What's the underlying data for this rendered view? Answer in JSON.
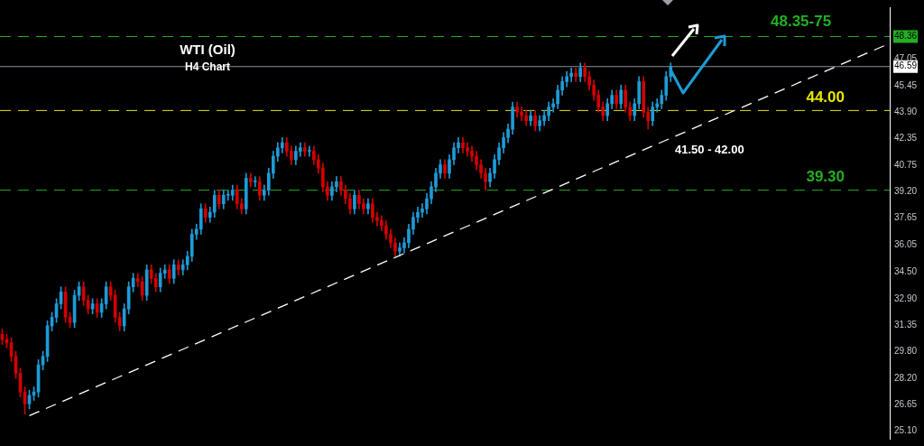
{
  "chart_data": {
    "type": "candlestick",
    "title": "WTI (Oil)",
    "subtitle": "H4 Chart",
    "annotations": [
      "48.35-75",
      "41.50 - 42.00"
    ],
    "categories": [
      null,
      null,
      null,
      null,
      null,
      null,
      null,
      null,
      null,
      null,
      null,
      null,
      null,
      null,
      null,
      null,
      null,
      null,
      null,
      null,
      null,
      null,
      null,
      null,
      null,
      null,
      null,
      null,
      null,
      null,
      null,
      null,
      null,
      null,
      null,
      null,
      null,
      null,
      null,
      null,
      null,
      null,
      null,
      null,
      null,
      null,
      null,
      null,
      null,
      null,
      null,
      null,
      null,
      null,
      null,
      null,
      null,
      null,
      null,
      null,
      null,
      null,
      null,
      null,
      null,
      null,
      null,
      null,
      null,
      null,
      null,
      null,
      null,
      null,
      null,
      null,
      null,
      null,
      null,
      null,
      null,
      null,
      null,
      null,
      null,
      null,
      null,
      null,
      null,
      null,
      null,
      null,
      null,
      null,
      null,
      null,
      null,
      null,
      null,
      null,
      null,
      null,
      null,
      null,
      null,
      null,
      null,
      null,
      null,
      null,
      null,
      null,
      null,
      null,
      null,
      null,
      null,
      null,
      null,
      null,
      null,
      null,
      null,
      null,
      null,
      null,
      null,
      null,
      null,
      null,
      null,
      null,
      null,
      null,
      null,
      null,
      null,
      null,
      null,
      null,
      null,
      null,
      null,
      null,
      null,
      null,
      null,
      null,
      null,
      null,
      null,
      null,
      null,
      null,
      null,
      null,
      null,
      null,
      null,
      null,
      null,
      null,
      null,
      null,
      null,
      null,
      null,
      null,
      null,
      null,
      null,
      null,
      null,
      null,
      null,
      null,
      null,
      null,
      null,
      null,
      null,
      null,
      null,
      null,
      null,
      null,
      null,
      null,
      null,
      null,
      null,
      null,
      null,
      null,
      null,
      null,
      null
    ],
    "ohlc": [
      [
        30.8,
        31.1,
        30.2,
        30.5
      ],
      [
        30.5,
        30.8,
        30.0,
        30.3
      ],
      [
        30.3,
        30.6,
        29.2,
        29.5
      ],
      [
        29.5,
        29.8,
        28.2,
        28.5
      ],
      [
        28.5,
        28.8,
        27.1,
        27.4
      ],
      [
        27.4,
        27.7,
        26.1,
        26.7
      ],
      [
        26.7,
        27.5,
        26.4,
        27.2
      ],
      [
        27.2,
        27.7,
        26.9,
        27.4
      ],
      [
        27.4,
        29.3,
        27.1,
        29.0
      ],
      [
        29.0,
        29.8,
        28.7,
        29.5
      ],
      [
        29.5,
        31.6,
        29.2,
        31.3
      ],
      [
        31.3,
        32.1,
        31.0,
        31.8
      ],
      [
        31.8,
        32.9,
        31.5,
        32.6
      ],
      [
        32.6,
        33.6,
        32.3,
        33.3
      ],
      [
        33.3,
        33.6,
        31.5,
        31.8
      ],
      [
        31.8,
        32.1,
        31.2,
        31.5
      ],
      [
        31.5,
        33.4,
        31.2,
        33.1
      ],
      [
        33.1,
        33.9,
        32.8,
        33.6
      ],
      [
        33.6,
        33.9,
        32.5,
        32.8
      ],
      [
        32.8,
        33.1,
        32.0,
        32.3
      ],
      [
        32.3,
        32.9,
        32.0,
        32.6
      ],
      [
        32.6,
        32.9,
        31.8,
        32.1
      ],
      [
        32.1,
        32.9,
        31.8,
        32.6
      ],
      [
        32.6,
        33.9,
        32.3,
        33.6
      ],
      [
        33.6,
        33.9,
        32.8,
        33.1
      ],
      [
        33.1,
        33.4,
        31.5,
        31.8
      ],
      [
        31.8,
        32.1,
        31.0,
        31.3
      ],
      [
        31.3,
        32.6,
        31.0,
        32.3
      ],
      [
        32.3,
        33.9,
        32.0,
        33.6
      ],
      [
        33.6,
        34.4,
        33.3,
        34.1
      ],
      [
        34.1,
        34.4,
        33.6,
        33.9
      ],
      [
        33.9,
        34.2,
        32.8,
        33.1
      ],
      [
        33.1,
        34.9,
        32.8,
        34.6
      ],
      [
        34.6,
        34.9,
        33.8,
        34.1
      ],
      [
        34.1,
        34.4,
        33.3,
        33.6
      ],
      [
        33.6,
        34.7,
        33.3,
        34.4
      ],
      [
        34.4,
        34.9,
        34.1,
        34.6
      ],
      [
        34.6,
        34.9,
        33.8,
        34.1
      ],
      [
        34.1,
        35.2,
        33.8,
        34.9
      ],
      [
        34.9,
        35.2,
        34.3,
        34.6
      ],
      [
        34.6,
        35.2,
        34.3,
        34.9
      ],
      [
        34.9,
        35.7,
        34.6,
        35.4
      ],
      [
        35.4,
        37.0,
        35.1,
        36.7
      ],
      [
        36.7,
        37.3,
        36.4,
        37.0
      ],
      [
        37.0,
        38.5,
        36.7,
        38.2
      ],
      [
        38.2,
        38.5,
        37.4,
        37.7
      ],
      [
        37.7,
        38.3,
        37.4,
        38.0
      ],
      [
        38.0,
        39.3,
        37.7,
        39.0
      ],
      [
        39.0,
        39.3,
        38.2,
        38.5
      ],
      [
        38.5,
        39.3,
        38.2,
        39.0
      ],
      [
        39.0,
        39.3,
        38.7,
        39.0
      ],
      [
        39.0,
        39.6,
        38.7,
        39.3
      ],
      [
        39.3,
        39.6,
        38.2,
        38.5
      ],
      [
        38.5,
        38.8,
        37.9,
        38.2
      ],
      [
        38.2,
        40.3,
        37.9,
        40.0
      ],
      [
        40.0,
        40.3,
        39.5,
        39.8
      ],
      [
        39.8,
        40.1,
        39.5,
        39.8
      ],
      [
        39.8,
        40.1,
        38.7,
        39.0
      ],
      [
        39.0,
        39.6,
        38.7,
        39.3
      ],
      [
        39.3,
        40.6,
        39.0,
        40.3
      ],
      [
        40.3,
        41.6,
        40.0,
        41.3
      ],
      [
        41.3,
        42.1,
        41.0,
        41.8
      ],
      [
        41.8,
        42.4,
        41.5,
        42.1
      ],
      [
        42.1,
        42.4,
        41.3,
        41.6
      ],
      [
        41.6,
        41.9,
        40.8,
        41.1
      ],
      [
        41.1,
        41.9,
        40.8,
        41.6
      ],
      [
        41.6,
        42.1,
        41.3,
        41.8
      ],
      [
        41.8,
        42.1,
        41.3,
        41.6
      ],
      [
        41.6,
        41.9,
        41.3,
        41.6
      ],
      [
        41.6,
        41.9,
        40.8,
        41.1
      ],
      [
        41.1,
        41.4,
        40.3,
        40.6
      ],
      [
        40.6,
        40.9,
        39.2,
        39.5
      ],
      [
        39.5,
        39.8,
        38.7,
        39.0
      ],
      [
        39.0,
        39.8,
        38.7,
        39.5
      ],
      [
        39.5,
        40.1,
        39.2,
        39.8
      ],
      [
        39.8,
        40.1,
        39.0,
        39.3
      ],
      [
        39.3,
        39.6,
        38.5,
        38.8
      ],
      [
        38.8,
        39.1,
        37.9,
        38.2
      ],
      [
        38.2,
        39.3,
        37.9,
        39.0
      ],
      [
        39.0,
        39.3,
        38.2,
        38.5
      ],
      [
        38.5,
        38.8,
        37.9,
        38.2
      ],
      [
        38.2,
        38.8,
        37.9,
        38.5
      ],
      [
        38.5,
        38.8,
        37.4,
        37.7
      ],
      [
        37.7,
        38.0,
        37.2,
        37.5
      ],
      [
        37.5,
        37.8,
        36.9,
        37.2
      ],
      [
        37.2,
        37.5,
        36.4,
        36.7
      ],
      [
        36.7,
        37.0,
        35.9,
        36.2
      ],
      [
        36.2,
        36.5,
        35.4,
        35.7
      ],
      [
        35.7,
        36.2,
        35.4,
        35.9
      ],
      [
        35.9,
        36.5,
        35.6,
        36.2
      ],
      [
        36.2,
        37.3,
        35.9,
        37.0
      ],
      [
        37.0,
        38.0,
        36.7,
        37.7
      ],
      [
        37.7,
        38.3,
        37.4,
        38.0
      ],
      [
        38.0,
        38.5,
        37.7,
        38.2
      ],
      [
        38.2,
        39.1,
        37.9,
        38.8
      ],
      [
        38.8,
        39.8,
        38.5,
        39.5
      ],
      [
        39.5,
        40.6,
        39.2,
        40.3
      ],
      [
        40.3,
        41.1,
        40.0,
        40.8
      ],
      [
        40.8,
        41.1,
        40.0,
        40.3
      ],
      [
        40.3,
        41.4,
        40.0,
        41.1
      ],
      [
        41.1,
        42.1,
        40.8,
        41.8
      ],
      [
        41.8,
        42.4,
        41.5,
        42.1
      ],
      [
        42.1,
        42.4,
        41.5,
        41.8
      ],
      [
        41.8,
        42.1,
        41.3,
        41.6
      ],
      [
        41.6,
        41.9,
        41.0,
        41.3
      ],
      [
        41.3,
        41.6,
        40.5,
        40.8
      ],
      [
        40.8,
        41.1,
        40.0,
        40.3
      ],
      [
        40.3,
        40.6,
        39.3,
        39.8
      ],
      [
        39.8,
        40.6,
        39.5,
        40.3
      ],
      [
        40.3,
        41.4,
        40.0,
        41.1
      ],
      [
        41.1,
        42.1,
        40.8,
        41.8
      ],
      [
        41.8,
        42.7,
        41.5,
        42.4
      ],
      [
        42.4,
        43.2,
        42.1,
        42.9
      ],
      [
        42.9,
        44.5,
        42.6,
        44.2
      ],
      [
        44.2,
        44.5,
        43.6,
        43.9
      ],
      [
        43.9,
        44.2,
        43.4,
        43.7
      ],
      [
        43.7,
        44.0,
        43.1,
        43.4
      ],
      [
        43.4,
        44.0,
        43.1,
        43.7
      ],
      [
        43.7,
        44.0,
        42.8,
        43.1
      ],
      [
        43.1,
        43.7,
        42.8,
        43.4
      ],
      [
        43.4,
        44.0,
        43.1,
        43.7
      ],
      [
        43.7,
        44.5,
        43.4,
        44.2
      ],
      [
        44.2,
        44.7,
        43.9,
        44.4
      ],
      [
        44.4,
        45.5,
        44.1,
        45.2
      ],
      [
        45.2,
        46.0,
        44.9,
        45.7
      ],
      [
        45.7,
        46.3,
        45.4,
        46.0
      ],
      [
        46.0,
        46.5,
        45.7,
        46.2
      ],
      [
        46.2,
        46.5,
        45.7,
        46.0
      ],
      [
        46.0,
        46.8,
        45.7,
        46.5
      ],
      [
        46.5,
        46.8,
        45.7,
        46.0
      ],
      [
        46.0,
        46.3,
        45.2,
        45.5
      ],
      [
        45.5,
        45.8,
        44.6,
        44.9
      ],
      [
        44.9,
        45.2,
        43.9,
        44.2
      ],
      [
        44.2,
        44.5,
        43.4,
        43.7
      ],
      [
        43.7,
        44.7,
        43.4,
        44.4
      ],
      [
        44.4,
        45.2,
        44.1,
        44.9
      ],
      [
        44.9,
        45.2,
        44.1,
        44.4
      ],
      [
        44.4,
        45.5,
        44.1,
        45.2
      ],
      [
        45.2,
        45.5,
        43.9,
        44.2
      ],
      [
        44.2,
        44.5,
        43.4,
        43.7
      ],
      [
        43.7,
        44.7,
        43.4,
        44.4
      ],
      [
        44.4,
        46.0,
        44.1,
        45.7
      ],
      [
        45.7,
        46.0,
        43.6,
        43.9
      ],
      [
        43.9,
        44.2,
        42.9,
        43.4
      ],
      [
        43.4,
        44.5,
        43.1,
        44.2
      ],
      [
        44.2,
        44.7,
        43.9,
        44.4
      ],
      [
        44.4,
        45.2,
        44.1,
        44.9
      ],
      [
        44.9,
        46.3,
        44.6,
        46.0
      ],
      [
        46.0,
        46.8,
        45.7,
        46.59
      ],
      null,
      null,
      null,
      null,
      null,
      null,
      null,
      null,
      null,
      null,
      null,
      null,
      null,
      null,
      null,
      null,
      null,
      null,
      null,
      null,
      null,
      null,
      null,
      null,
      null,
      null,
      null,
      null,
      null,
      null,
      null,
      null,
      null,
      null,
      null,
      null,
      null,
      null,
      null,
      null,
      null,
      null,
      null,
      null,
      null,
      null,
      null,
      null
    ],
    "colors": [
      "#d40000",
      "#d40000",
      "#d40000",
      "#d40000",
      "#d40000",
      "#d40000",
      "#1e9bd7",
      "#1e9bd7",
      "#1e9bd7",
      "#1e9bd7",
      "#1e9bd7",
      "#1e9bd7",
      "#1e9bd7",
      "#1e9bd7",
      "#d40000",
      "#d40000",
      "#1e9bd7",
      "#1e9bd7",
      "#d40000",
      "#d40000",
      "#1e9bd7",
      "#d40000",
      "#1e9bd7",
      "#1e9bd7",
      "#d40000",
      "#d40000",
      "#d40000",
      "#1e9bd7",
      "#1e9bd7",
      "#1e9bd7",
      "#d40000",
      "#d40000",
      "#1e9bd7",
      "#d40000",
      "#d40000",
      "#1e9bd7",
      "#1e9bd7",
      "#d40000",
      "#1e9bd7",
      "#d40000",
      "#1e9bd7",
      "#1e9bd7",
      "#1e9bd7",
      "#1e9bd7",
      "#1e9bd7",
      "#d40000",
      "#1e9bd7",
      "#1e9bd7",
      "#d40000",
      "#1e9bd7",
      "#1e9bd7",
      "#1e9bd7",
      "#d40000",
      "#d40000",
      "#1e9bd7",
      "#d40000",
      "#1e9bd7",
      "#d40000",
      "#1e9bd7",
      "#1e9bd7",
      "#1e9bd7",
      "#1e9bd7",
      "#1e9bd7",
      "#d40000",
      "#d40000",
      "#1e9bd7",
      "#1e9bd7",
      "#d40000",
      "#1e9bd7",
      "#d40000",
      "#d40000",
      "#d40000",
      "#d40000",
      "#1e9bd7",
      "#1e9bd7",
      "#d40000",
      "#d40000",
      "#d40000",
      "#1e9bd7",
      "#d40000",
      "#d40000",
      "#1e9bd7",
      "#d40000",
      "#d40000",
      "#d40000",
      "#d40000",
      "#d40000",
      "#d40000",
      "#1e9bd7",
      "#1e9bd7",
      "#1e9bd7",
      "#1e9bd7",
      "#1e9bd7",
      "#1e9bd7",
      "#1e9bd7",
      "#1e9bd7",
      "#1e9bd7",
      "#1e9bd7",
      "#d40000",
      "#1e9bd7",
      "#1e9bd7",
      "#1e9bd7",
      "#d40000",
      "#d40000",
      "#d40000",
      "#d40000",
      "#d40000",
      "#d40000",
      "#1e9bd7",
      "#1e9bd7",
      "#1e9bd7",
      "#1e9bd7",
      "#1e9bd7",
      "#1e9bd7",
      "#d40000",
      "#d40000",
      "#d40000",
      "#1e9bd7",
      "#d40000",
      "#1e9bd7",
      "#1e9bd7",
      "#1e9bd7",
      "#1e9bd7",
      "#1e9bd7",
      "#1e9bd7",
      "#1e9bd7",
      "#1e9bd7",
      "#d40000",
      "#1e9bd7",
      "#d40000",
      "#d40000",
      "#d40000",
      "#d40000",
      "#d40000",
      "#1e9bd7",
      "#1e9bd7",
      "#d40000",
      "#1e9bd7",
      "#d40000",
      "#d40000",
      "#1e9bd7",
      "#1e9bd7",
      "#d40000",
      "#d40000",
      "#1e9bd7",
      "#1e9bd7",
      "#1e9bd7",
      "#1e9bd7",
      "#1e9bd7",
      null,
      null,
      null,
      null,
      null,
      null,
      null,
      null,
      null,
      null,
      null,
      null,
      null,
      null,
      null,
      null,
      null,
      null,
      null,
      null,
      null,
      null,
      null,
      null,
      null,
      null,
      null,
      null,
      null,
      null,
      null,
      null,
      null,
      null,
      null,
      null,
      null,
      null,
      null,
      null,
      null,
      null,
      null,
      null,
      null,
      null,
      null,
      null
    ],
    "series": [
      {
        "type": "line",
        "color": "#ffffff",
        "line_style": "dashed",
        "values": [
          null,
          null,
          null,
          null,
          null,
          null,
          26.0,
          null,
          null,
          null,
          null,
          null,
          null,
          null,
          null,
          null,
          null,
          null,
          null,
          null,
          null,
          null,
          null,
          null,
          null,
          null,
          null,
          null,
          null,
          null,
          null,
          null,
          null,
          null,
          null,
          null,
          null,
          null,
          null,
          null,
          null,
          null,
          null,
          null,
          null,
          null,
          null,
          null,
          null,
          null,
          null,
          null,
          null,
          null,
          null,
          null,
          null,
          null,
          null,
          null,
          null,
          null,
          null,
          null,
          null,
          null,
          null,
          null,
          null,
          null,
          null,
          null,
          null,
          null,
          null,
          null,
          null,
          null,
          null,
          null,
          null,
          null,
          null,
          null,
          null,
          null,
          null,
          null,
          null,
          null,
          null,
          null,
          null,
          null,
          null,
          null,
          null,
          null,
          null,
          null,
          null,
          null,
          null,
          null,
          null,
          null,
          null,
          null,
          null,
          null,
          null,
          null,
          null,
          null,
          null,
          null,
          null,
          null,
          null,
          null,
          null,
          null,
          null,
          null,
          null,
          null,
          null,
          null,
          null,
          null,
          null,
          null,
          null,
          null,
          null,
          null,
          null,
          null,
          null,
          null,
          null,
          null,
          null,
          null,
          null,
          null,
          null,
          null,
          null,
          null,
          null,
          null,
          null,
          null,
          null,
          null,
          null,
          null,
          null,
          null,
          null,
          null,
          null,
          null,
          null,
          null,
          null,
          null,
          null,
          null,
          null,
          null,
          null,
          null,
          null,
          null,
          null,
          null,
          null,
          null,
          null,
          null,
          null,
          null,
          null,
          null,
          null,
          null,
          null,
          null,
          null,
          null,
          null,
          null,
          null,
          null,
          47.9
        ]
      }
    ],
    "ylim": [
      24.64,
      50.09
    ],
    "yticks": [
      {
        "value": 25.1,
        "label": "25.10"
      },
      26.65,
      {
        "value": 28.2,
        "label": "28.20"
      },
      {
        "value": 29.8,
        "label": "29.80"
      },
      31.35,
      {
        "value": 32.9,
        "label": "32.90"
      },
      {
        "value": 34.5,
        "label": "34.50"
      },
      36.05,
      37.65,
      {
        "value": 39.2,
        "label": "39.20"
      },
      40.75,
      42.35,
      {
        "value": 43.9,
        "label": "43.90"
      },
      45.45,
      46.59,
      47.05,
      48.36
    ],
    "ref_lines": [
      {
        "axis": "y",
        "value": 48.36,
        "color": "#22b022",
        "line_style": "dashed"
      },
      {
        "axis": "y",
        "value": 46.59,
        "color": "#8a929a",
        "line_style": "solid"
      },
      {
        "axis": "y",
        "value": 44.0,
        "label": "44.00",
        "color": "#e6e600",
        "line_style": "dashed"
      },
      {
        "axis": "y",
        "value": 39.3,
        "label": "39.30",
        "color": "#22b022",
        "line_style": "dashed"
      }
    ]
  }
}
